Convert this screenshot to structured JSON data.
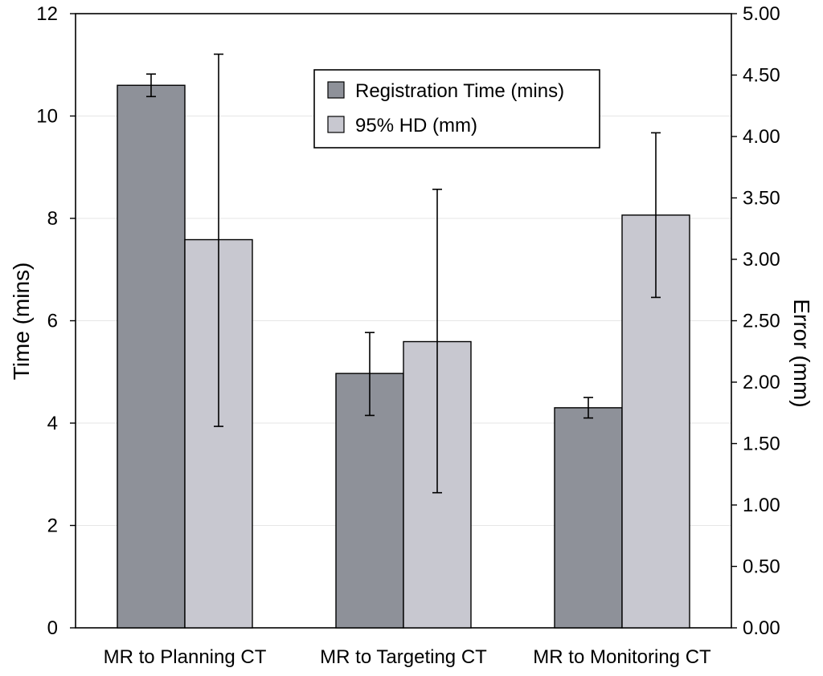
{
  "chart_data": {
    "type": "bar",
    "title": "",
    "categories": [
      "MR to Planning CT",
      "MR to Targeting CT",
      "MR to Monitoring CT"
    ],
    "ylabel_left": "Time (mins)",
    "ylabel_right": "Error (mm)",
    "ylim_left": [
      0,
      12
    ],
    "ylim_right": [
      0,
      5
    ],
    "yticks_left": [
      "0",
      "2",
      "4",
      "6",
      "8",
      "10",
      "12"
    ],
    "yticks_right": [
      "0.00",
      "0.50",
      "1.00",
      "1.50",
      "2.00",
      "2.50",
      "3.00",
      "3.50",
      "4.00",
      "4.50",
      "5.00"
    ],
    "grid": true,
    "legend_position": "top-center",
    "series": [
      {
        "name": "Registration Time (mins)",
        "axis": "left",
        "color": "#8e9199",
        "values": [
          10.6,
          4.97,
          4.3
        ],
        "err_low": [
          10.38,
          4.15,
          4.1
        ],
        "err_high": [
          10.82,
          5.77,
          4.5
        ]
      },
      {
        "name": "95% HD (mm)",
        "axis": "right",
        "color": "#c8c8d0",
        "values": [
          3.16,
          2.33,
          3.36
        ],
        "err_low": [
          1.64,
          1.1,
          2.69
        ],
        "err_high": [
          4.67,
          3.57,
          4.03
        ]
      }
    ]
  }
}
